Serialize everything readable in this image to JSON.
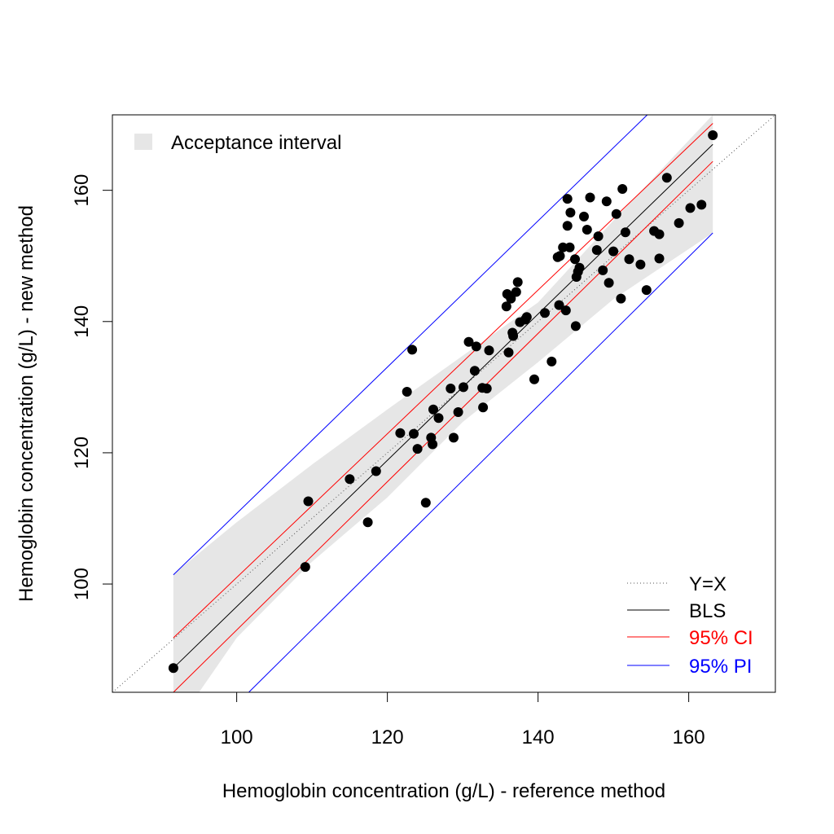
{
  "chart_data": {
    "type": "scatter",
    "xlabel": "Hemoglobin concentration (g/L) - reference method",
    "ylabel": "Hemoglobin concentration (g/L) - new method",
    "xlim": [
      83.5,
      171.5
    ],
    "ylim": [
      83.5,
      171.5
    ],
    "xticks": [
      100,
      120,
      140,
      160
    ],
    "yticks": [
      100,
      120,
      140,
      160
    ],
    "tick_labels_x": [
      "100",
      "120",
      "140",
      "160"
    ],
    "tick_labels_y": [
      "100",
      "120",
      "140",
      "160"
    ],
    "grid": false,
    "legend_top": {
      "position": "top-left",
      "entries": [
        {
          "label": "Acceptance interval",
          "color": "#e6e6e6"
        }
      ]
    },
    "legend_bottom": {
      "position": "bottom-right",
      "entries": [
        {
          "label": "Y=X",
          "color": "#555555",
          "style": "dotted"
        },
        {
          "label": "BLS",
          "color": "#000000",
          "style": "solid"
        },
        {
          "label": "95% CI",
          "color": "#ff0000",
          "style": "solid"
        },
        {
          "label": "95% PI",
          "color": "#0000ff",
          "style": "solid"
        }
      ]
    },
    "acceptance_interval": {
      "upper": [
        [
          91.6,
          101.5
        ],
        [
          100,
          109.4
        ],
        [
          110,
          118.2
        ],
        [
          120,
          126.6
        ],
        [
          130,
          134.8
        ],
        [
          140,
          142.9
        ],
        [
          150,
          155.4
        ],
        [
          163.2,
          171.5
        ]
      ],
      "lower": [
        [
          91.6,
          83.5
        ],
        [
          95,
          83.5
        ],
        [
          100,
          91.8
        ],
        [
          110,
          103.4
        ],
        [
          120,
          113.2
        ],
        [
          130,
          124.7
        ],
        [
          140,
          133.8
        ],
        [
          150,
          143.4
        ],
        [
          163.2,
          153.5
        ]
      ]
    },
    "bls_line": {
      "x": [
        91.6,
        163.2
      ],
      "y": [
        87.2,
        167.0
      ],
      "color": "#000000"
    },
    "ci_upper": {
      "x": [
        91.6,
        163.2
      ],
      "y": [
        91.8,
        170.2
      ],
      "color": "#ff0000"
    },
    "ci_lower": {
      "x": [
        91.6,
        163.2
      ],
      "y": [
        83.5,
        164.4
      ],
      "color": "#ff0000"
    },
    "pi_upper": {
      "x": [
        91.6,
        154.5
      ],
      "y": [
        101.4,
        171.5
      ],
      "color": "#0000ff"
    },
    "pi_lower": {
      "x": [
        101.6,
        163.2
      ],
      "y": [
        83.5,
        153.5
      ],
      "color": "#0000ff"
    },
    "points": [
      [
        91.6,
        87.2
      ],
      [
        109.1,
        102.6
      ],
      [
        109.5,
        112.6
      ],
      [
        115.0,
        116.0
      ],
      [
        117.4,
        109.4
      ],
      [
        118.5,
        117.2
      ],
      [
        121.7,
        123.0
      ],
      [
        122.6,
        129.3
      ],
      [
        123.3,
        135.7
      ],
      [
        123.5,
        122.9
      ],
      [
        124.0,
        120.6
      ],
      [
        125.1,
        112.4
      ],
      [
        125.8,
        122.3
      ],
      [
        126.0,
        121.3
      ],
      [
        126.1,
        126.6
      ],
      [
        126.8,
        125.3
      ],
      [
        128.4,
        129.8
      ],
      [
        128.8,
        122.3
      ],
      [
        129.4,
        126.2
      ],
      [
        130.1,
        130.0
      ],
      [
        130.8,
        136.9
      ],
      [
        131.6,
        132.5
      ],
      [
        131.8,
        136.2
      ],
      [
        132.6,
        129.9
      ],
      [
        132.7,
        126.9
      ],
      [
        133.2,
        129.8
      ],
      [
        133.5,
        135.6
      ],
      [
        135.8,
        142.3
      ],
      [
        135.9,
        144.2
      ],
      [
        136.1,
        135.3
      ],
      [
        136.4,
        143.5
      ],
      [
        136.6,
        138.3
      ],
      [
        136.7,
        137.8
      ],
      [
        137.1,
        144.5
      ],
      [
        137.3,
        146.0
      ],
      [
        137.6,
        139.9
      ],
      [
        138.3,
        140.3
      ],
      [
        138.5,
        140.7
      ],
      [
        139.5,
        131.2
      ],
      [
        140.9,
        141.3
      ],
      [
        141.8,
        133.9
      ],
      [
        142.6,
        149.8
      ],
      [
        142.8,
        142.5
      ],
      [
        142.9,
        150.0
      ],
      [
        143.3,
        151.3
      ],
      [
        143.7,
        141.7
      ],
      [
        143.9,
        158.7
      ],
      [
        143.9,
        154.6
      ],
      [
        144.2,
        151.3
      ],
      [
        144.3,
        156.6
      ],
      [
        144.9,
        149.5
      ],
      [
        145.0,
        139.3
      ],
      [
        145.1,
        146.8
      ],
      [
        145.3,
        147.6
      ],
      [
        145.5,
        148.2
      ],
      [
        146.1,
        156.0
      ],
      [
        146.5,
        154.0
      ],
      [
        146.9,
        158.9
      ],
      [
        147.8,
        150.9
      ],
      [
        148.0,
        153.0
      ],
      [
        148.6,
        147.8
      ],
      [
        149.1,
        158.3
      ],
      [
        149.4,
        145.9
      ],
      [
        150.0,
        150.7
      ],
      [
        150.4,
        156.4
      ],
      [
        151.0,
        143.5
      ],
      [
        151.2,
        160.2
      ],
      [
        151.6,
        153.6
      ],
      [
        152.1,
        149.5
      ],
      [
        153.6,
        148.7
      ],
      [
        154.4,
        144.8
      ],
      [
        155.4,
        153.8
      ],
      [
        156.1,
        153.3
      ],
      [
        156.1,
        149.6
      ],
      [
        157.1,
        161.9
      ],
      [
        158.7,
        155.0
      ],
      [
        160.2,
        157.3
      ],
      [
        161.7,
        157.8
      ],
      [
        163.2,
        168.4
      ]
    ]
  }
}
